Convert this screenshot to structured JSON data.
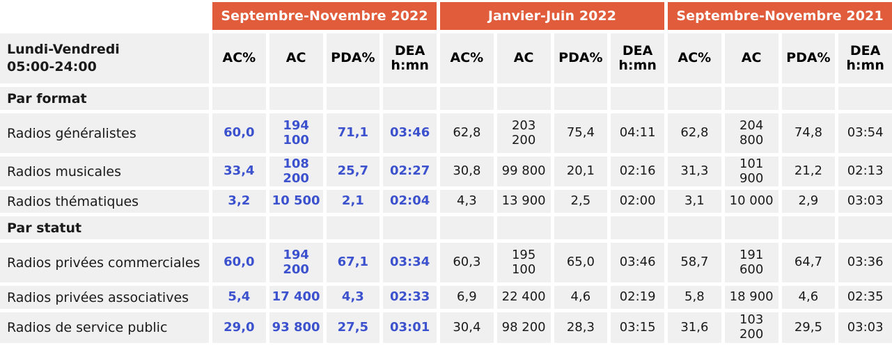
{
  "chart_data": {
    "type": "table",
    "title_lines": [
      "Lundi-Vendredi",
      "05:00-24:00"
    ],
    "period_groups": [
      "Septembre-Novembre 2022",
      "Janvier-Juin 2022",
      "Septembre-Novembre 2021"
    ],
    "metrics": [
      "AC%",
      "AC",
      "PDA%",
      "DEA h:mn"
    ],
    "highlighted_group": "Septembre-Novembre 2022",
    "sections": [
      {
        "title": "Par format",
        "rows": [
          {
            "label": "Radios généralistes",
            "values": [
              "60,0",
              "194 100",
              "71,1",
              "03:46",
              "62,8",
              "203 200",
              "75,4",
              "04:11",
              "62,8",
              "204 800",
              "74,8",
              "03:54"
            ]
          },
          {
            "label": "Radios musicales",
            "values": [
              "33,4",
              "108 200",
              "25,7",
              "02:27",
              "30,8",
              "99 800",
              "20,1",
              "02:16",
              "31,3",
              "101 900",
              "21,2",
              "02:13"
            ]
          },
          {
            "label": "Radios thématiques",
            "values": [
              "3,2",
              "10 500",
              "2,1",
              "02:04",
              "4,3",
              "13 900",
              "2,5",
              "02:00",
              "3,1",
              "10 000",
              "2,9",
              "03:03"
            ]
          }
        ]
      },
      {
        "title": "Par statut",
        "rows": [
          {
            "label": "Radios privées commerciales",
            "values": [
              "60,0",
              "194 200",
              "67,1",
              "03:34",
              "60,3",
              "195 100",
              "65,0",
              "03:46",
              "58,7",
              "191 600",
              "64,7",
              "03:36"
            ]
          },
          {
            "label": "Radios privées associatives",
            "values": [
              "5,4",
              "17 400",
              "4,3",
              "02:33",
              "6,9",
              "22 400",
              "4,6",
              "02:19",
              "5,8",
              "18 900",
              "4,6",
              "02:35"
            ]
          },
          {
            "label": "Radios de service public",
            "values": [
              "29,0",
              "93 800",
              "27,5",
              "03:01",
              "30,4",
              "98 200",
              "28,3",
              "03:15",
              "31,6",
              "103 200",
              "29,5",
              "03:03"
            ]
          }
        ]
      }
    ],
    "colors": {
      "accent_orange": "#E05C3A",
      "highlight_blue": "#3B51CD",
      "cell_background": "#F0F0F0",
      "text_color": "#1A1A1A"
    }
  }
}
